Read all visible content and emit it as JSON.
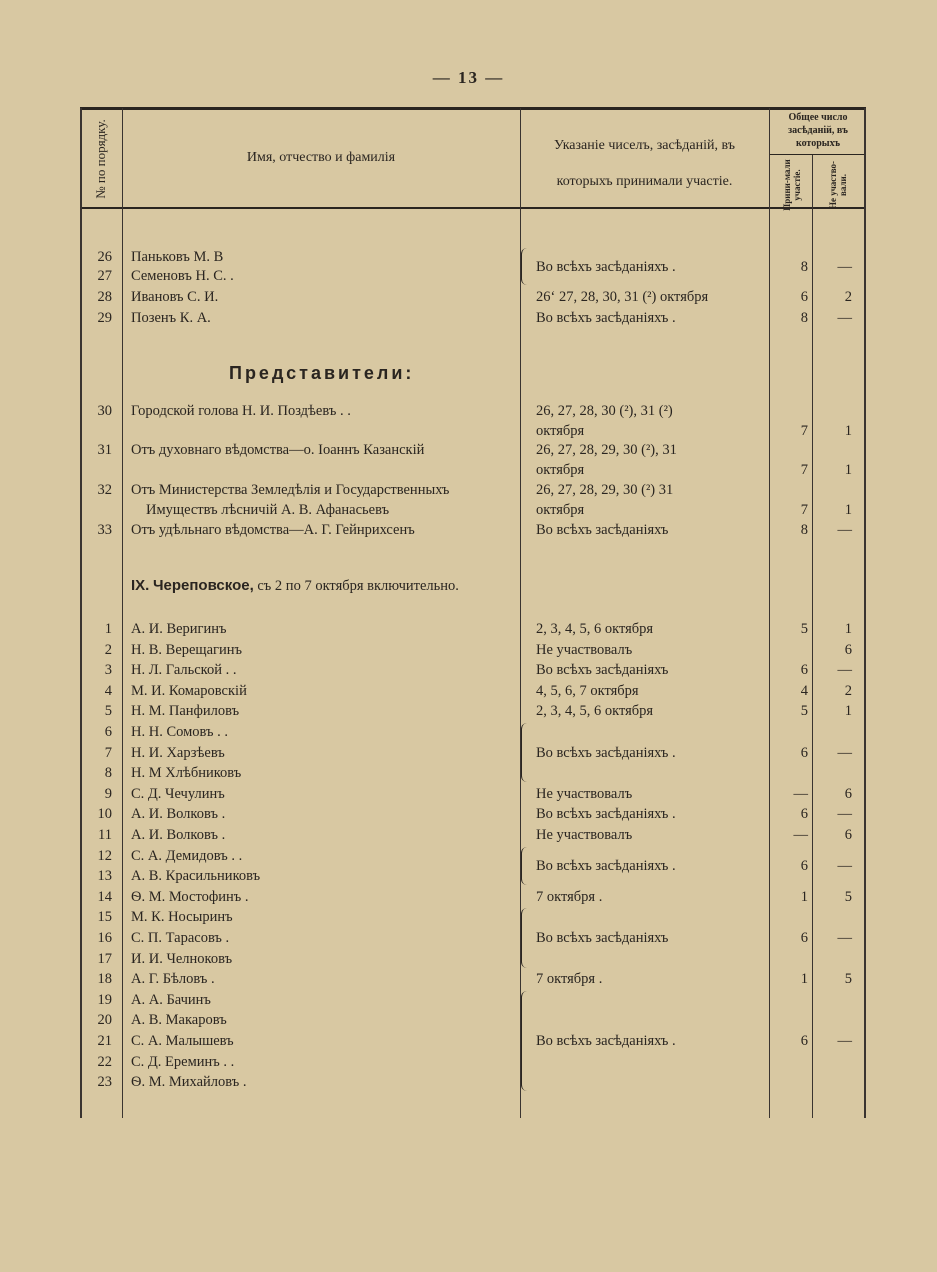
{
  "page_number": "— 13 —",
  "header": {
    "col_number": "№ по порядку.",
    "col_name": "Имя, отчество и фамилія",
    "col_dates_line1": "Указаніе чиселъ, засѣданій, въ",
    "col_dates_line2": "которыхъ принимали участіе.",
    "col_total": "Общее число засѣданій, въ которыхъ",
    "col_took_part": "Прини-мали участіе.",
    "col_absent": "Не участво-вали."
  },
  "block1": {
    "rows": [
      {
        "num": "26",
        "name": "Паньковъ М. В"
      },
      {
        "num": "27",
        "name": "Семеновъ Н. С. ."
      },
      {
        "num": "28",
        "name": "Ивановъ С. И."
      },
      {
        "num": "29",
        "name": "Позенъ К. А."
      }
    ],
    "entries": [
      {
        "rows": [
          0,
          1
        ],
        "text": "Во всѣхъ засѣданiяхъ .",
        "took": "8",
        "missed": "—"
      },
      {
        "rows": [
          2
        ],
        "text": "26‘ 27, 28, 30, 31 (²) октября",
        "took": "6",
        "missed": "2"
      },
      {
        "rows": [
          3
        ],
        "text": "Во всѣхъ засѣданiяхъ .",
        "took": "8",
        "missed": "—"
      }
    ]
  },
  "representatives": {
    "title": "Представители:",
    "rows": [
      {
        "num": "30",
        "name": "Городской голова Н. И. Поздѣевъ . ."
      },
      {
        "num": "31",
        "name": "Отъ духовнаго вѣдомства—о. Іоаннъ Казанскій"
      },
      {
        "num": "32",
        "name": "Отъ Министерства Земледѣлія и Государственныхъ",
        "name2": "Имуществъ лѣсничій А. В. Афанасьевъ"
      },
      {
        "num": "33",
        "name": "Отъ удѣльнаго вѣдомства—А. Г. Гейнрихсенъ"
      }
    ],
    "entries": [
      {
        "rows": [
          0
        ],
        "text": "26, 27, 28, 30 (²), 31 (²)",
        "text2": "октября",
        "took": "7",
        "missed": "1"
      },
      {
        "rows": [
          1
        ],
        "text": "26, 27, 28, 29, 30 (²), 31",
        "text2": "октября",
        "took": "7",
        "missed": "1"
      },
      {
        "rows": [
          2
        ],
        "text": "26, 27, 28, 29, 30 (²) 31",
        "text2": "октября",
        "took": "7",
        "missed": "1"
      },
      {
        "rows": [
          3
        ],
        "text": "Во всѣхъ засѣданiяхъ",
        "took": "8",
        "missed": "—"
      }
    ]
  },
  "cherepovets": {
    "title_roman": "IX.",
    "title_name": "Череповское,",
    "title_rest": "съ 2 по 7 октября включительно.",
    "rows": [
      {
        "num": "1",
        "name": "А. И. Веригинъ"
      },
      {
        "num": "2",
        "name": "Н. В. Верещагинъ"
      },
      {
        "num": "3",
        "name": "Н. Л. Гальской . ."
      },
      {
        "num": "4",
        "name": "М. И. Комаровскій"
      },
      {
        "num": "5",
        "name": "Н. М. Панфиловъ"
      },
      {
        "num": "6",
        "name": "Н. Н. Сомовъ . ."
      },
      {
        "num": "7",
        "name": "Н. И. Харзѣевъ"
      },
      {
        "num": "8",
        "name": "Н. М Хлѣбниковъ"
      },
      {
        "num": "9",
        "name": "С. Д. Чечулинъ"
      },
      {
        "num": "10",
        "name": "А. И. Волковъ ."
      },
      {
        "num": "11",
        "name": "А. И. Волковъ ."
      },
      {
        "num": "12",
        "name": "С. А. Демидовъ . ."
      },
      {
        "num": "13",
        "name": "А. В. Красильниковъ"
      },
      {
        "num": "14",
        "name": "Ѳ. М. Мостофинъ ."
      },
      {
        "num": "15",
        "name": "М. К. Носыринъ"
      },
      {
        "num": "16",
        "name": "С. П. Тарасовъ ."
      },
      {
        "num": "17",
        "name": "И. И. Челноковъ"
      },
      {
        "num": "18",
        "name": "А. Г. Бѣловъ ."
      },
      {
        "num": "19",
        "name": "А. А. Бачинъ"
      },
      {
        "num": "20",
        "name": "А. В. Макаровъ"
      },
      {
        "num": "21",
        "name": "С. А. Малышевъ"
      },
      {
        "num": "22",
        "name": "С. Д. Ереминъ . ."
      },
      {
        "num": "23",
        "name": "Ѳ. М. Михайловъ ."
      }
    ],
    "entries": [
      {
        "rows": [
          0
        ],
        "text": "2, 3, 4, 5, 6 октября",
        "took": "5",
        "missed": "1"
      },
      {
        "rows": [
          1
        ],
        "text": "Не участвовалъ",
        "took": "",
        "missed": "6"
      },
      {
        "rows": [
          2
        ],
        "text": "Во всѣхъ засѣданiяхъ",
        "took": "6",
        "missed": "—"
      },
      {
        "rows": [
          3
        ],
        "text": "4, 5, 6, 7 октября",
        "took": "4",
        "missed": "2"
      },
      {
        "rows": [
          4
        ],
        "text": "2, 3, 4, 5, 6 октября",
        "took": "5",
        "missed": "1"
      },
      {
        "rows": [
          5,
          7
        ],
        "text": "Во всѣхъ засѣданiяхъ .",
        "took": "6",
        "missed": "—"
      },
      {
        "rows": [
          8
        ],
        "text": "Не участвовалъ",
        "took": "—",
        "missed": "6"
      },
      {
        "rows": [
          9
        ],
        "text": "Во всѣхъ засѣданiяхъ .",
        "took": "6",
        "missed": "—"
      },
      {
        "rows": [
          10
        ],
        "text": "Не участвовалъ",
        "took": "—",
        "missed": "6"
      },
      {
        "rows": [
          11,
          12
        ],
        "text": "Во всѣхъ засѣданiяхъ .",
        "took": "6",
        "missed": "—"
      },
      {
        "rows": [
          13
        ],
        "text": "7 октября .",
        "took": "1",
        "missed": "5"
      },
      {
        "rows": [
          14,
          16
        ],
        "text": "Во всѣхъ засѣданiяхъ",
        "took": "6",
        "missed": "—"
      },
      {
        "rows": [
          17
        ],
        "text": "7 октября .",
        "took": "1",
        "missed": "5"
      },
      {
        "rows": [
          18,
          22
        ],
        "text": "Во всѣхъ засѣданiяхъ .",
        "took": "6",
        "missed": "—"
      }
    ]
  }
}
